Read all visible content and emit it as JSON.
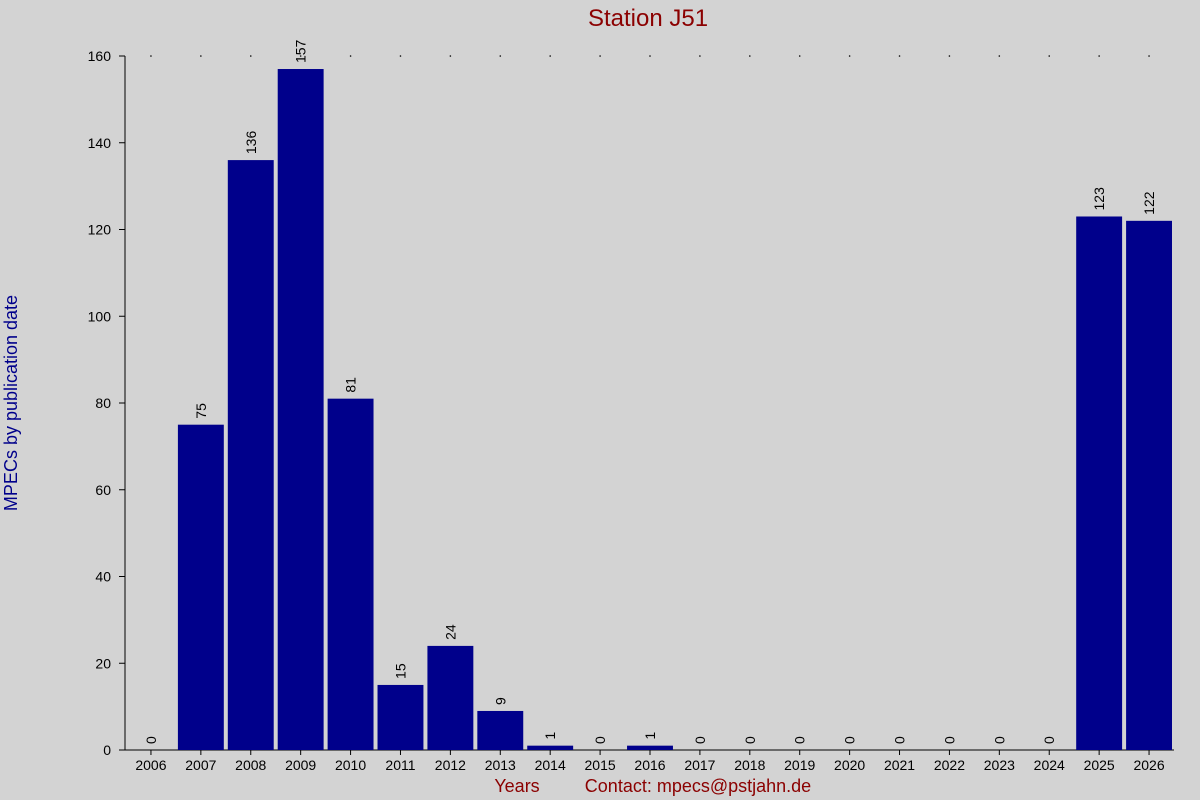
{
  "chart_data": {
    "type": "bar",
    "title": "Station J51",
    "xlabel": "Years",
    "ylabel": "MPECs by publication date",
    "contact": "Contact: mpecs@pstjahn.de",
    "categories": [
      "2006",
      "2007",
      "2008",
      "2009",
      "2010",
      "2011",
      "2012",
      "2013",
      "2014",
      "2015",
      "2016",
      "2017",
      "2018",
      "2019",
      "2020",
      "2021",
      "2022",
      "2023",
      "2024",
      "2025",
      "2026"
    ],
    "values": [
      0,
      75,
      136,
      157,
      81,
      15,
      24,
      9,
      1,
      0,
      1,
      0,
      0,
      0,
      0,
      0,
      0,
      0,
      0,
      123,
      122
    ],
    "ylim": [
      0,
      160
    ],
    "yticks": [
      0,
      20,
      40,
      60,
      80,
      100,
      120,
      140,
      160
    ],
    "grid": false,
    "legend": "none",
    "colors": {
      "bar": "#00008b",
      "background": "#d3d3d3",
      "title": "#8b0000",
      "ylabel": "#00008b",
      "xlabel": "#8b0000"
    }
  }
}
